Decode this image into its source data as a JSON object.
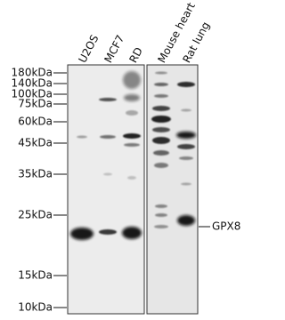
{
  "lanes": [
    "U2OS",
    "MCF7",
    "RD",
    "Mouse heart",
    "Rat lung"
  ],
  "markers": [
    "180kDa",
    "140kDa",
    "100kDa",
    "75kDa",
    "60kDa",
    "45kDa",
    "35kDa",
    "25kDa",
    "15kDa",
    "10kDa"
  ],
  "target": "GPX8"
}
